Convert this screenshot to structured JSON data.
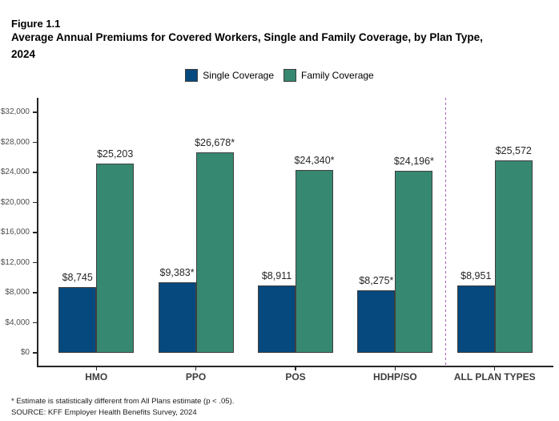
{
  "figure": {
    "label": "Figure 1.1",
    "title_line1": "Average Annual Premiums for Covered Workers, Single and Family Coverage, by Plan Type,",
    "title_line2": "2024"
  },
  "legend": [
    {
      "label": "Single Coverage",
      "color": "#05497E"
    },
    {
      "label": "Family Coverage",
      "color": "#368870"
    }
  ],
  "notes": {
    "footnote": "* Estimate is statistically different from All Plans estimate (p < .05).",
    "source": "SOURCE: KFF Employer Health Benefits Survey, 2024"
  },
  "chart_data": {
    "type": "bar",
    "categories": [
      "HMO",
      "PPO",
      "POS",
      "HDHP/SO",
      "ALL PLAN TYPES"
    ],
    "series": [
      {
        "name": "Single Coverage",
        "color": "#05497E",
        "values": [
          8745,
          9383,
          8911,
          8275,
          8951
        ],
        "labels": [
          "$8,745",
          "$9,383*",
          "$8,911",
          "$8,275*",
          "$8,951"
        ]
      },
      {
        "name": "Family Coverage",
        "color": "#368870",
        "values": [
          25203,
          26678,
          24340,
          24196,
          25572
        ],
        "labels": [
          "$25,203",
          "$26,678*",
          "$24,340*",
          "$24,196*",
          "$25,572"
        ]
      }
    ],
    "xlabel": "",
    "ylabel": "",
    "ylim": [
      0,
      32000
    ],
    "ytick_step": 4000,
    "ytick_labels": [
      "$0",
      "$4,000",
      "$8,000",
      "$12,000",
      "$16,000",
      "$20,000",
      "$24,000",
      "$28,000",
      "$32,000"
    ],
    "grid": false,
    "legend_position": "top",
    "bar_border_color": "#3F3F3F",
    "separator": {
      "before_category": "ALL PLAN TYPES",
      "style": "dashed",
      "color": "#A85FB8"
    }
  }
}
